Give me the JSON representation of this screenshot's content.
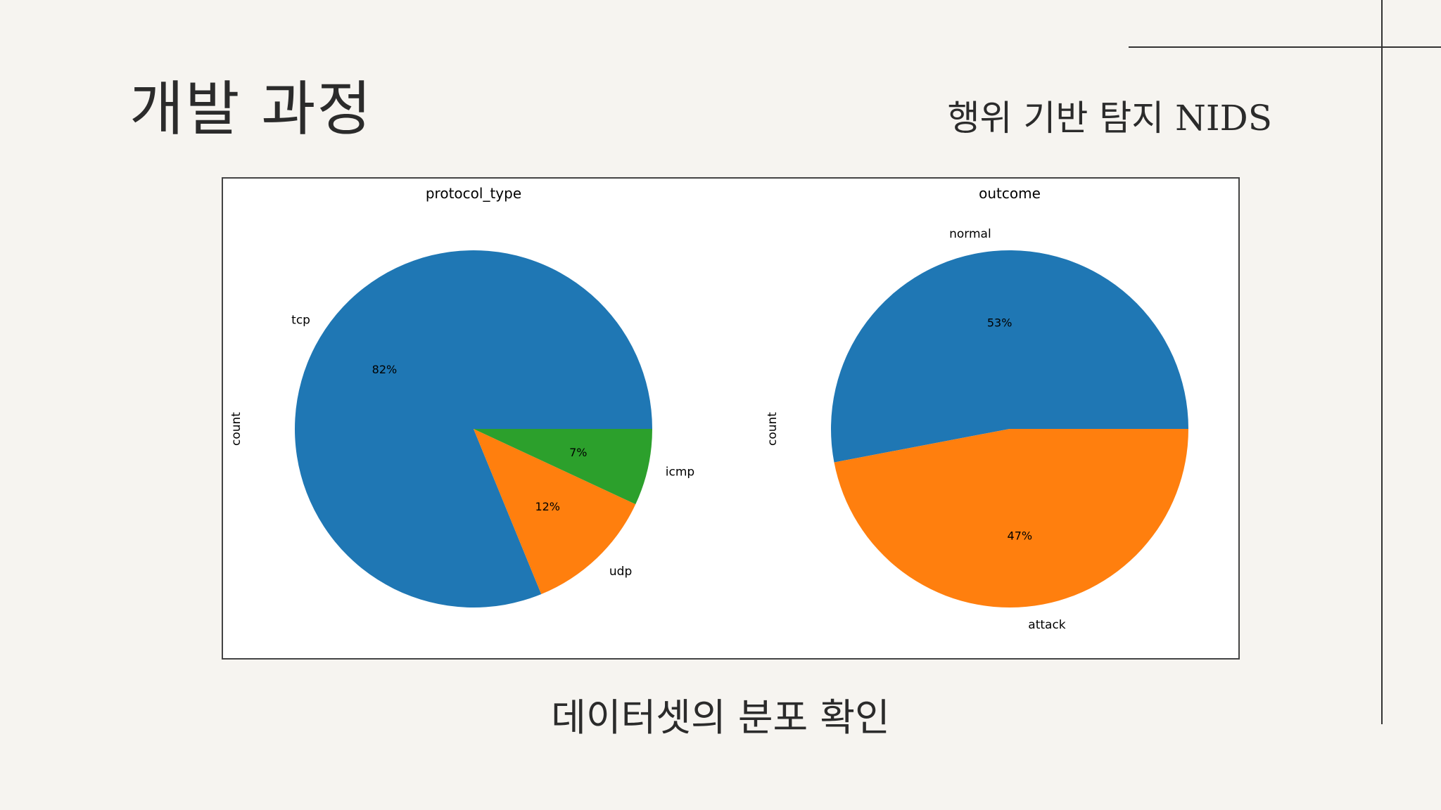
{
  "slide": {
    "title": "개발 과정",
    "subtitle": "행위 기반 탐지 NIDS",
    "caption": "데이터셋의 분포 확인"
  },
  "chart_data": [
    {
      "type": "pie",
      "title": "protocol_type",
      "ylabel": "count",
      "categories": [
        "tcp",
        "udp",
        "icmp"
      ],
      "values": [
        82,
        12,
        7
      ],
      "autopct": [
        "82%",
        "12%",
        "7%"
      ],
      "colors": [
        "#1f77b4",
        "#ff7f0e",
        "#2ca02c"
      ],
      "start_angle_deg": 0,
      "direction": "counterclockwise"
    },
    {
      "type": "pie",
      "title": "outcome",
      "ylabel": "count",
      "categories": [
        "normal",
        "attack"
      ],
      "values": [
        53,
        47
      ],
      "autopct": [
        "53%",
        "47%"
      ],
      "colors": [
        "#1f77b4",
        "#ff7f0e"
      ],
      "start_angle_deg": 0,
      "direction": "counterclockwise"
    }
  ]
}
